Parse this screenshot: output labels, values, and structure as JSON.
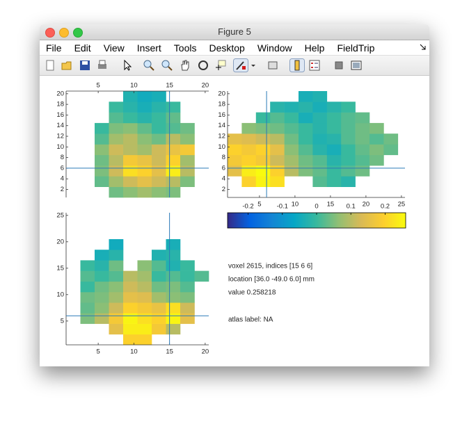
{
  "window": {
    "title": "Figure 5",
    "menu": [
      "File",
      "Edit",
      "View",
      "Insert",
      "Tools",
      "Desktop",
      "Window",
      "Help",
      "FieldTrip"
    ]
  },
  "chart_data": [
    {
      "type": "heatmap",
      "xaxis_position": "top",
      "x": [
        1.5,
        3.5,
        5.5,
        7.5,
        9.5,
        11.5,
        13.5,
        15.5,
        17.5,
        19.5
      ],
      "y": [
        1.5,
        3.5,
        5.5,
        7.5,
        9.5,
        11.5,
        13.5,
        15.5,
        17.5,
        19.5
      ],
      "values": [
        [
          null,
          null,
          null,
          0.04,
          0.06,
          0.08,
          0.06,
          0.05,
          null,
          null
        ],
        [
          null,
          null,
          0.03,
          0.08,
          0.12,
          0.15,
          0.12,
          0.1,
          0.05,
          null
        ],
        [
          null,
          null,
          0.05,
          0.12,
          0.22,
          0.2,
          0.15,
          0.24,
          0.1,
          null
        ],
        [
          null,
          null,
          0.04,
          0.1,
          0.18,
          0.16,
          0.12,
          0.2,
          0.08,
          null
        ],
        [
          null,
          null,
          0.06,
          0.12,
          0.1,
          0.08,
          0.12,
          0.16,
          0.18,
          null
        ],
        [
          null,
          null,
          0.02,
          0.08,
          0.1,
          0.06,
          0.04,
          0.1,
          0.06,
          null
        ],
        [
          null,
          null,
          0.0,
          0.05,
          0.06,
          0.03,
          0.0,
          0.02,
          0.04,
          null
        ],
        [
          null,
          null,
          null,
          0.02,
          0.0,
          -0.02,
          0.0,
          0.03,
          null,
          null
        ],
        [
          null,
          null,
          null,
          0.0,
          -0.02,
          -0.04,
          -0.02,
          0.0,
          null,
          null
        ],
        [
          null,
          null,
          null,
          null,
          -0.03,
          -0.05,
          -0.04,
          null,
          null,
          null
        ]
      ],
      "xlim": [
        0.5,
        20.5
      ],
      "ylim": [
        0.5,
        20.5
      ],
      "xticks": [
        5,
        10,
        15,
        20
      ],
      "yticks": [
        2,
        4,
        6,
        8,
        10,
        12,
        14,
        16,
        18,
        20
      ],
      "crosshair": {
        "x": 15,
        "y": 6
      },
      "crosshair_color": "#2a7ab8"
    },
    {
      "type": "heatmap",
      "xaxis_position": "bottom",
      "x": [
        1.5,
        3.5,
        5.5,
        7.5,
        9.5,
        11.5,
        13.5,
        15.5,
        17.5,
        19.5,
        21.5,
        23.5
      ],
      "y": [
        1.5,
        3.5,
        5.5,
        7.5,
        9.5,
        11.5,
        13.5,
        15.5,
        17.5,
        19.5
      ],
      "values": [
        [
          null,
          null,
          null,
          null,
          null,
          null,
          null,
          null,
          null,
          null,
          null,
          null
        ],
        [
          null,
          0.2,
          0.25,
          0.22,
          null,
          null,
          0.02,
          0.0,
          -0.02,
          null,
          null,
          null
        ],
        [
          0.15,
          0.24,
          0.26,
          0.2,
          0.1,
          0.05,
          0.03,
          0.0,
          0.02,
          0.04,
          null,
          null
        ],
        [
          0.18,
          0.2,
          0.18,
          0.12,
          0.08,
          0.04,
          0.02,
          -0.02,
          0.0,
          0.02,
          0.04,
          null
        ],
        [
          0.2,
          0.18,
          0.2,
          0.15,
          0.06,
          0.02,
          -0.02,
          -0.04,
          0.0,
          0.03,
          0.05,
          0.03
        ],
        [
          0.15,
          0.14,
          0.12,
          0.1,
          0.04,
          0.0,
          -0.03,
          -0.02,
          0.02,
          0.04,
          0.02,
          0.04
        ],
        [
          null,
          0.06,
          0.05,
          0.04,
          0.02,
          0.0,
          -0.02,
          0.0,
          0.02,
          0.04,
          0.05,
          null
        ],
        [
          null,
          null,
          0.0,
          0.02,
          0.0,
          -0.04,
          -0.02,
          0.0,
          0.02,
          0.03,
          null,
          null
        ],
        [
          null,
          null,
          null,
          -0.02,
          -0.03,
          -0.02,
          -0.04,
          -0.02,
          0.0,
          null,
          null,
          null
        ],
        [
          null,
          null,
          null,
          null,
          null,
          -0.04,
          -0.03,
          null,
          null,
          null,
          null,
          null
        ]
      ],
      "xlim": [
        0.5,
        25.5
      ],
      "ylim": [
        0.5,
        20.5
      ],
      "xticks": [
        5,
        10,
        15,
        20,
        25
      ],
      "yticks": [
        2,
        4,
        6,
        8,
        10,
        12,
        14,
        16,
        18,
        20
      ],
      "crosshair": {
        "x": 6,
        "y": 6
      },
      "crosshair_color": "#2a7ab8"
    },
    {
      "type": "heatmap",
      "xaxis_position": "bottom",
      "x": [
        1.5,
        3.5,
        5.5,
        7.5,
        9.5,
        11.5,
        13.5,
        15.5,
        17.5,
        19.5
      ],
      "y": [
        1.5,
        3.5,
        5.5,
        7.5,
        9.5,
        11.5,
        13.5,
        15.5,
        17.5,
        19.5
      ],
      "values": [
        [
          null,
          null,
          null,
          null,
          0.2,
          0.2,
          null,
          null,
          null,
          null
        ],
        [
          null,
          null,
          null,
          0.15,
          0.24,
          0.24,
          0.18,
          0.1,
          null,
          null
        ],
        [
          null,
          0.05,
          0.1,
          0.18,
          0.25,
          0.22,
          0.2,
          0.25,
          0.15,
          null
        ],
        [
          null,
          0.03,
          0.06,
          0.12,
          0.2,
          0.18,
          0.16,
          0.22,
          0.12,
          null
        ],
        [
          null,
          0.04,
          0.05,
          0.08,
          0.15,
          0.14,
          0.08,
          0.06,
          0.05,
          null
        ],
        [
          null,
          0.0,
          0.04,
          0.06,
          0.12,
          0.1,
          0.04,
          0.05,
          0.02,
          null
        ],
        [
          null,
          0.02,
          0.0,
          0.02,
          0.1,
          0.08,
          0.0,
          0.02,
          0.0,
          0.02
        ],
        [
          null,
          0.0,
          -0.02,
          0.04,
          null,
          0.06,
          0.02,
          -0.03,
          0.0,
          null
        ],
        [
          null,
          null,
          -0.04,
          -0.02,
          null,
          null,
          -0.03,
          -0.02,
          null,
          null
        ],
        [
          null,
          null,
          null,
          -0.05,
          null,
          null,
          null,
          -0.04,
          null,
          null
        ]
      ],
      "xlim": [
        0.5,
        20.5
      ],
      "ylim": [
        0.5,
        25.5
      ],
      "xticks": [
        5,
        10,
        15,
        20
      ],
      "yticks": [
        5,
        10,
        15,
        20,
        25
      ],
      "crosshair": {
        "x": 15,
        "y": 6
      },
      "crosshair_color": "#2a7ab8"
    },
    {
      "type": "colorbar",
      "clim": [
        -0.26,
        0.26
      ],
      "xticks": [
        -0.2,
        -0.1,
        0,
        0.1,
        0.2
      ],
      "colormap": [
        "#352a87",
        "#0363e1",
        "#1485d4",
        "#06a7c6",
        "#38b99e",
        "#92bf73",
        "#d9ba56",
        "#fcce2e",
        "#f9fb0e"
      ]
    }
  ],
  "info": [
    "voxel 2615, indices [15 6 6]",
    "location [36.0 -49.0 6.0] mm",
    "value 0.258218",
    "atlas label: NA"
  ]
}
